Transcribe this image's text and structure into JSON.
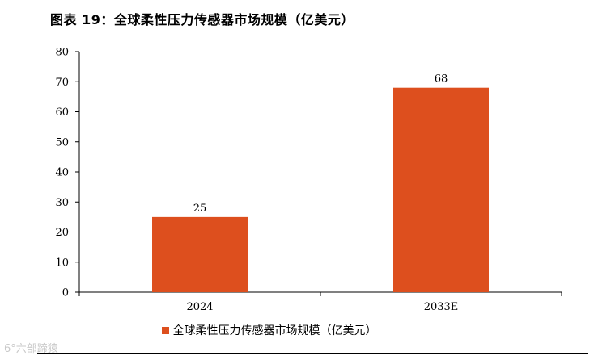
{
  "figure": {
    "title": "图表 19：全球柔性压力传感器市场规模（亿美元）",
    "watermark": "6°六部蹄猿"
  },
  "colors": {
    "bar": "#dd4f1e",
    "axis": "#000000"
  },
  "chart_data": {
    "type": "bar",
    "categories": [
      "2024",
      "2033E"
    ],
    "series": [
      {
        "name": "全球柔性压力传感器市场规模（亿美元）",
        "values": [
          25,
          68
        ]
      }
    ],
    "data_labels": [
      "25",
      "68"
    ],
    "yticks": [
      "0",
      "10",
      "20",
      "30",
      "40",
      "50",
      "60",
      "70",
      "80"
    ],
    "ylim": [
      0,
      80
    ],
    "grid": false,
    "legend_position": "bottom"
  }
}
